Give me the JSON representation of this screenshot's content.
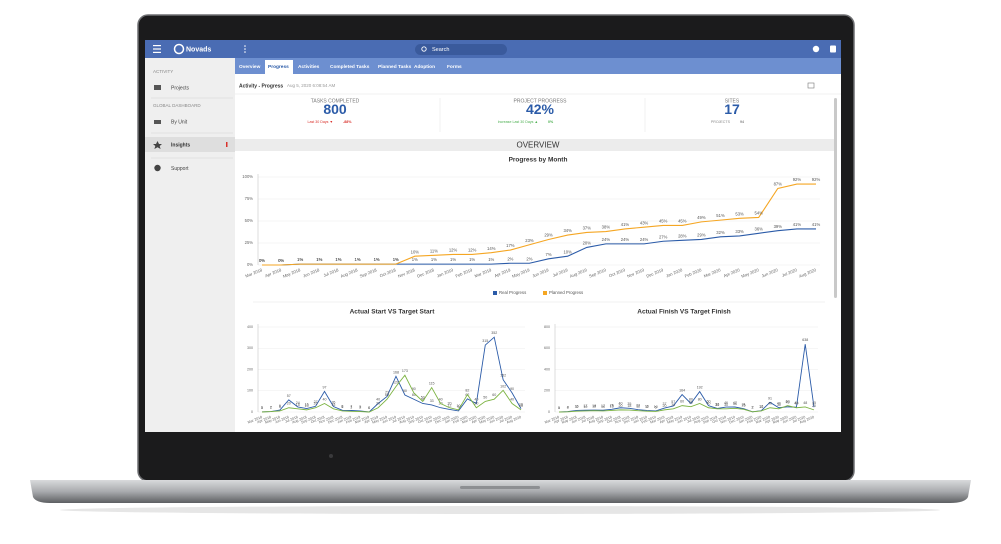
{
  "header": {
    "brand": "Novads",
    "search": "Search"
  },
  "sidebar": {
    "activity_label": "ACTIVITY",
    "projects": "Projects",
    "global_label": "GLOBAL DASHBOARD",
    "by_unit": "By Unit",
    "insights": "Insights",
    "support": "Support"
  },
  "tabs": [
    "Overview",
    "Progress",
    "Activities",
    "Completed Tasks",
    "Planned Tasks",
    "Adoption",
    "Forms"
  ],
  "breadcrumb": {
    "title": "Activity - Progress",
    "date": "Aug 5, 2020 6:08:54 AM"
  },
  "kpis": [
    {
      "label": "TASKS COMPLETED",
      "value": "800",
      "sub_label": "Last 30 Days ▼",
      "sub_value": "-88%"
    },
    {
      "label": "PROJECT PROGRESS",
      "value": "42%",
      "sub_label": "Increase Last 30 Days ▲",
      "sub_value": "0%"
    },
    {
      "label": "SITES",
      "value": "17",
      "sub_label": "PROJECTS",
      "sub_value": "94"
    }
  ],
  "section_title": "OVERVIEW",
  "charts": [
    {
      "type": "line",
      "title": "Progress by Month",
      "categories": [
        "Mar 2018",
        "Apr 2018",
        "May 2018",
        "Jun 2018",
        "Jul 2018",
        "Aug 2018",
        "Sep 2018",
        "Oct 2018",
        "Nov 2018",
        "Dec 2018",
        "Jan 2019",
        "Feb 2019",
        "Mar 2019",
        "Apr 2019",
        "May 2019",
        "Jun 2019",
        "Jul 2019",
        "Aug 2019",
        "Sep 2019",
        "Oct 2019",
        "Nov 2019",
        "Dec 2019",
        "Jan 2020",
        "Feb 2020",
        "Mar 2020",
        "Apr 2020",
        "May 2020",
        "Jun 2020",
        "Jul 2020",
        "Aug 2020"
      ],
      "series": [
        {
          "name": "Real Progress",
          "color": "#2b5ba8",
          "values": [
            0,
            0,
            1,
            1,
            1,
            1,
            1,
            1,
            1,
            1,
            1,
            1,
            1,
            2,
            2,
            7,
            10,
            20,
            24,
            24,
            24,
            27,
            28,
            29,
            32,
            33,
            36,
            39,
            41,
            41
          ],
          "value_labels": [
            "0%",
            "0%",
            "1%",
            "1%",
            "1%",
            "1%",
            "1%",
            "1%",
            "1%",
            "1%",
            "1%",
            "1%",
            "1%",
            "2%",
            "2%",
            "7%",
            "10%",
            "20%",
            "24%",
            "24%",
            "24%",
            "27%",
            "28%",
            "29%",
            "32%",
            "33%",
            "36%",
            "39%",
            "41%",
            "41%"
          ]
        },
        {
          "name": "Planned Progress",
          "color": "#f5a623",
          "values": [
            0,
            0,
            1,
            1,
            1,
            1,
            1,
            1,
            10,
            11,
            12,
            12,
            14,
            17,
            23,
            29,
            34,
            37,
            38,
            41,
            43,
            45,
            45,
            49,
            51,
            53,
            54,
            87,
            92,
            92
          ],
          "value_labels": [
            "0%",
            "0%",
            "1%",
            "1%",
            "1%",
            "1%",
            "1%",
            "1%",
            "10%",
            "11%",
            "12%",
            "12%",
            "14%",
            "17%",
            "23%",
            "29%",
            "34%",
            "37%",
            "38%",
            "41%",
            "43%",
            "45%",
            "45%",
            "49%",
            "51%",
            "53%",
            "54%",
            "87%",
            "92%",
            "92%"
          ]
        }
      ],
      "ylim": [
        0,
        100
      ],
      "yticks": [
        {
          "value": 0,
          "label": "0%"
        },
        {
          "value": 25,
          "label": "25%"
        },
        {
          "value": 50,
          "label": "50%"
        },
        {
          "value": 75,
          "label": "75%"
        },
        {
          "value": 100,
          "label": "100%"
        }
      ],
      "grid": true,
      "legend": "bottom"
    },
    {
      "type": "line",
      "title": "Actual Start VS Target Start",
      "categories": [
        "Mar 2018",
        "Apr 2018",
        "May 2018",
        "Jun 2018",
        "Jul 2018",
        "Aug 2018",
        "Sep 2018",
        "Oct 2018",
        "Nov 2018",
        "Dec 2018",
        "Jan 2019",
        "Feb 2019",
        "Mar 2019",
        "Apr 2019",
        "May 2019",
        "Jun 2019",
        "Jul 2019",
        "Aug 2019",
        "Sep 2019",
        "Oct 2019",
        "Nov 2019",
        "Dec 2019",
        "Jan 2020",
        "Feb 2020",
        "Mar 2020",
        "Apr 2020",
        "May 2020",
        "Jun 2020",
        "Jul 2020",
        "Aug 2020"
      ],
      "series": [
        {
          "color": "#2b5ba8",
          "values": [
            1,
            2,
            9,
            57,
            24,
            16,
            27,
            97,
            26,
            8,
            7,
            5,
            0,
            40,
            73,
            168,
            80,
            60,
            40,
            33,
            20,
            12,
            5,
            62,
            40,
            315,
            352,
            152,
            90,
            16
          ]
        },
        {
          "color": "#7cb342",
          "values": [
            0,
            2,
            5,
            20,
            15,
            10,
            20,
            40,
            15,
            5,
            3,
            2,
            0,
            20,
            60,
            120,
            173,
            90,
            50,
            115,
            40,
            20,
            10,
            82,
            20,
            50,
            60,
            102,
            40,
            10
          ]
        }
      ],
      "ylim": [
        0,
        400
      ],
      "yticks": [
        0,
        100,
        200,
        300,
        400
      ],
      "grid": true
    },
    {
      "type": "line",
      "title": "Actual Finish VS Target Finish",
      "categories": [
        "Mar 2018",
        "Apr 2018",
        "May 2018",
        "Jun 2018",
        "Jul 2018",
        "Aug 2018",
        "Sep 2018",
        "Oct 2018",
        "Nov 2018",
        "Dec 2018",
        "Jan 2019",
        "Feb 2019",
        "Mar 2019",
        "Apr 2019",
        "May 2019",
        "Jun 2019",
        "Jul 2019",
        "Aug 2019",
        "Sep 2019",
        "Oct 2019",
        "Nov 2019",
        "Dec 2019",
        "Jan 2020",
        "Feb 2020",
        "Mar 2020",
        "Apr 2020",
        "May 2020",
        "Jun 2020",
        "Jul 2020",
        "Aug 2020"
      ],
      "series": [
        {
          "color": "#2b5ba8",
          "values": [
            1,
            4,
            15,
            17,
            18,
            17,
            25,
            40,
            35,
            22,
            15,
            10,
            37,
            57,
            164,
            80,
            192,
            60,
            33,
            46,
            47,
            31,
            2,
            12,
            91,
            40,
            49,
            45,
            638,
            45
          ]
        },
        {
          "color": "#7cb342",
          "values": [
            0,
            2,
            8,
            10,
            12,
            10,
            15,
            20,
            18,
            12,
            8,
            5,
            20,
            30,
            60,
            50,
            80,
            40,
            30,
            30,
            35,
            25,
            2,
            10,
            40,
            30,
            60,
            40,
            48,
            20
          ]
        }
      ],
      "ylim": [
        0,
        800
      ],
      "yticks": [
        0,
        200,
        400,
        600,
        800
      ],
      "grid": true
    }
  ]
}
